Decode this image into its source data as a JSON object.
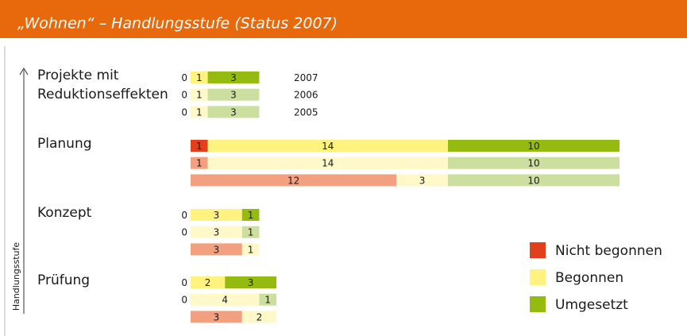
{
  "chart_data": {
    "type": "grouped_stacked_bar",
    "title": "„Wohnen“ – Handlungsstufe (Status 2007)",
    "y_axis_label": "Handlungsstufe",
    "categories": [
      [
        "Projekte mit",
        "Reduktionseffekten"
      ],
      [
        "Planung"
      ],
      [
        "Konzept"
      ],
      [
        "Prüfung"
      ]
    ],
    "years": [
      "2007",
      "2006",
      "2005"
    ],
    "series": [
      {
        "name": "Nicht begonnen",
        "colors": [
          "#e2401c",
          "#f2a080",
          "#f2a080"
        ],
        "values": [
          [
            0,
            0,
            0
          ],
          [
            1,
            1,
            12
          ],
          [
            0,
            0,
            3
          ],
          [
            0,
            0,
            3
          ]
        ]
      },
      {
        "name": "Begonnen",
        "colors": [
          "#fff27f",
          "#fff8c8",
          "#fff8c8"
        ],
        "values": [
          [
            1,
            1,
            1
          ],
          [
            14,
            14,
            3
          ],
          [
            3,
            3,
            1
          ],
          [
            2,
            4,
            2
          ]
        ]
      },
      {
        "name": "Umgesetzt",
        "colors": [
          "#95bb10",
          "#cddf9e",
          "#cddf9e"
        ],
        "values": [
          [
            3,
            3,
            3
          ],
          [
            10,
            10,
            10
          ],
          [
            1,
            1,
            null
          ],
          [
            3,
            1,
            null
          ]
        ]
      }
    ]
  }
}
